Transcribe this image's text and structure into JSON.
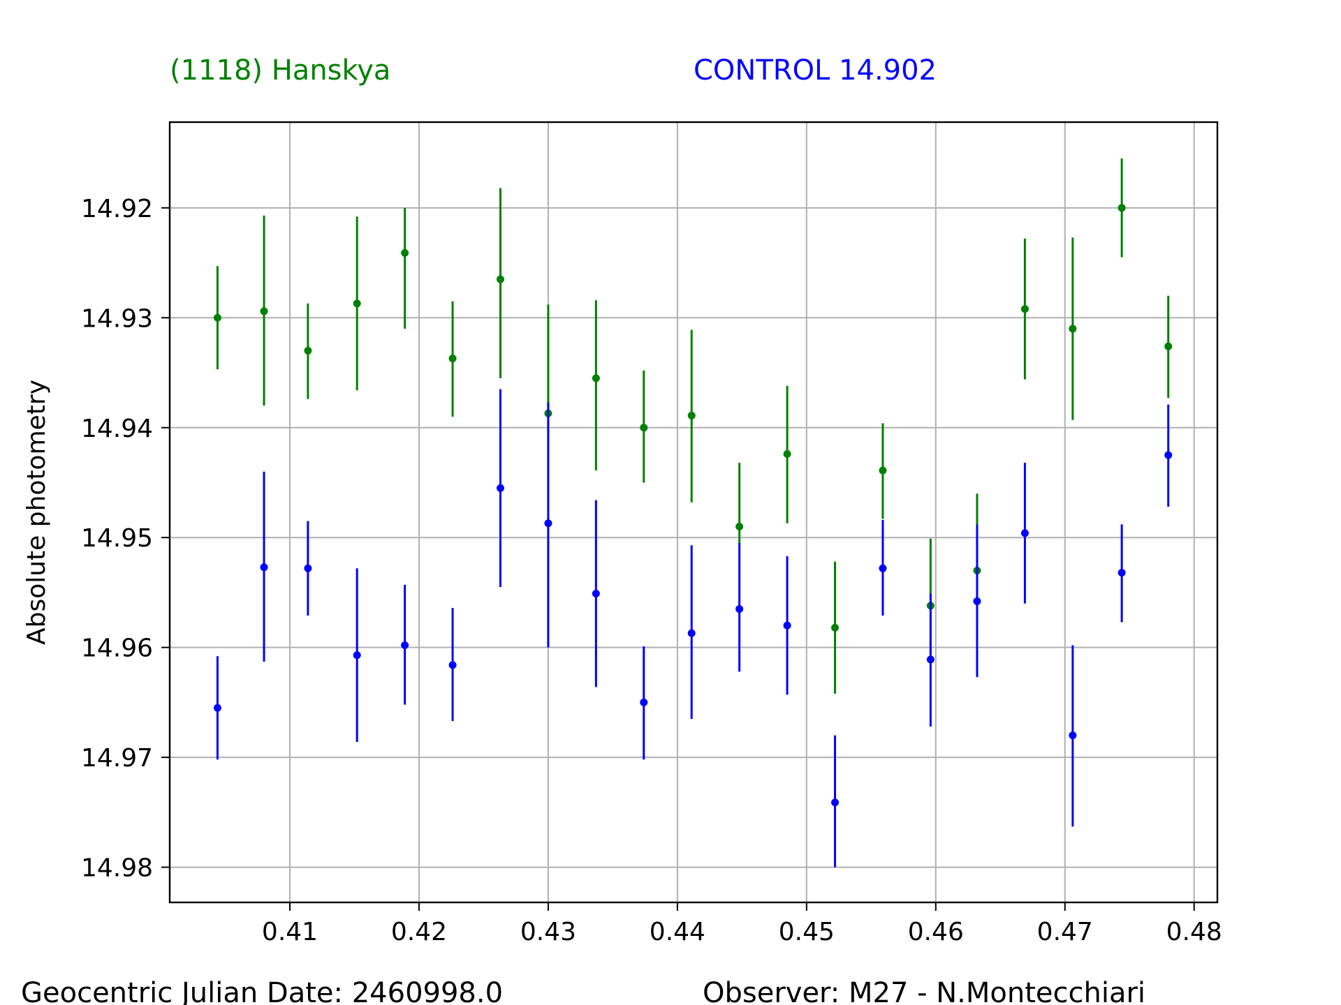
{
  "chart_data": {
    "type": "scatter",
    "header": {
      "target": "(1118) Hanskya",
      "control": "CONTROL 14.902"
    },
    "footer": {
      "date": "Geocentric Julian Date: 2460998.0",
      "observer": "Observer: M27 - N.Montecchiari"
    },
    "xlabel": "",
    "ylabel": "Absolute photometry",
    "xlim": [
      0.4007,
      0.4818
    ],
    "ylim": [
      14.9832,
      14.9122
    ],
    "y_inverted": true,
    "grid": true,
    "x_ticks": [
      0.41,
      0.42,
      0.43,
      0.44,
      0.45,
      0.46,
      0.47,
      0.48
    ],
    "x_tick_labels": [
      "0.41",
      "0.42",
      "0.43",
      "0.44",
      "0.45",
      "0.46",
      "0.47",
      "0.48"
    ],
    "y_ticks": [
      14.92,
      14.93,
      14.94,
      14.95,
      14.96,
      14.97,
      14.98
    ],
    "y_tick_labels": [
      "14.92",
      "14.93",
      "14.94",
      "14.95",
      "14.96",
      "14.97",
      "14.98"
    ],
    "series": [
      {
        "name": "(1118) Hanskya",
        "color": "#008000",
        "points": [
          {
            "x": 0.4044,
            "y": 14.93,
            "lo": 14.9253,
            "hi": 14.9347
          },
          {
            "x": 0.408,
            "y": 14.9294,
            "lo": 14.9207,
            "hi": 14.938
          },
          {
            "x": 0.4114,
            "y": 14.933,
            "lo": 14.9287,
            "hi": 14.9374
          },
          {
            "x": 0.4152,
            "y": 14.9287,
            "lo": 14.9208,
            "hi": 14.9366
          },
          {
            "x": 0.4189,
            "y": 14.9241,
            "lo": 14.92,
            "hi": 14.931
          },
          {
            "x": 0.4226,
            "y": 14.9337,
            "lo": 14.9285,
            "hi": 14.939
          },
          {
            "x": 0.4263,
            "y": 14.9265,
            "lo": 14.9182,
            "hi": 14.9355
          },
          {
            "x": 0.43,
            "y": 14.9387,
            "lo": 14.9288,
            "hi": 14.9405
          },
          {
            "x": 0.4337,
            "y": 14.9355,
            "lo": 14.9284,
            "hi": 14.9439
          },
          {
            "x": 0.4374,
            "y": 14.94,
            "lo": 14.9348,
            "hi": 14.945
          },
          {
            "x": 0.4411,
            "y": 14.9389,
            "lo": 14.9311,
            "hi": 14.9468
          },
          {
            "x": 0.4448,
            "y": 14.949,
            "lo": 14.9432,
            "hi": 14.9506
          },
          {
            "x": 0.4485,
            "y": 14.9424,
            "lo": 14.9362,
            "hi": 14.9487
          },
          {
            "x": 0.4522,
            "y": 14.9582,
            "lo": 14.9522,
            "hi": 14.9642
          },
          {
            "x": 0.4559,
            "y": 14.9439,
            "lo": 14.9396,
            "hi": 14.9483
          },
          {
            "x": 0.4596,
            "y": 14.9562,
            "lo": 14.9501,
            "hi": 14.9605
          },
          {
            "x": 0.4632,
            "y": 14.953,
            "lo": 14.946,
            "hi": 14.958
          },
          {
            "x": 0.4669,
            "y": 14.9292,
            "lo": 14.9228,
            "hi": 14.9356
          },
          {
            "x": 0.4706,
            "y": 14.931,
            "lo": 14.9227,
            "hi": 14.9393
          },
          {
            "x": 0.4744,
            "y": 14.92,
            "lo": 14.9155,
            "hi": 14.9245
          },
          {
            "x": 0.478,
            "y": 14.9326,
            "lo": 14.928,
            "hi": 14.9373
          }
        ]
      },
      {
        "name": "CONTROL 14.902",
        "color": "#0000ff",
        "points": [
          {
            "x": 0.4044,
            "y": 14.9655,
            "lo": 14.9608,
            "hi": 14.9702
          },
          {
            "x": 0.408,
            "y": 14.9527,
            "lo": 14.944,
            "hi": 14.9613
          },
          {
            "x": 0.4114,
            "y": 14.9528,
            "lo": 14.9485,
            "hi": 14.9571
          },
          {
            "x": 0.4152,
            "y": 14.9607,
            "lo": 14.9528,
            "hi": 14.9686
          },
          {
            "x": 0.4189,
            "y": 14.9598,
            "lo": 14.9543,
            "hi": 14.9652
          },
          {
            "x": 0.4226,
            "y": 14.9616,
            "lo": 14.9564,
            "hi": 14.9667
          },
          {
            "x": 0.4263,
            "y": 14.9455,
            "lo": 14.9365,
            "hi": 14.9545
          },
          {
            "x": 0.43,
            "y": 14.9487,
            "lo": 14.9377,
            "hi": 14.96
          },
          {
            "x": 0.4337,
            "y": 14.9551,
            "lo": 14.9466,
            "hi": 14.9636
          },
          {
            "x": 0.4374,
            "y": 14.965,
            "lo": 14.9599,
            "hi": 14.9702
          },
          {
            "x": 0.4411,
            "y": 14.9587,
            "lo": 14.9507,
            "hi": 14.9665
          },
          {
            "x": 0.4448,
            "y": 14.9565,
            "lo": 14.9505,
            "hi": 14.9622
          },
          {
            "x": 0.4485,
            "y": 14.958,
            "lo": 14.9517,
            "hi": 14.9643
          },
          {
            "x": 0.4522,
            "y": 14.9741,
            "lo": 14.968,
            "hi": 14.98
          },
          {
            "x": 0.4559,
            "y": 14.9528,
            "lo": 14.9484,
            "hi": 14.9571
          },
          {
            "x": 0.4596,
            "y": 14.9611,
            "lo": 14.9551,
            "hi": 14.9672
          },
          {
            "x": 0.4632,
            "y": 14.9558,
            "lo": 14.9488,
            "hi": 14.9627
          },
          {
            "x": 0.4669,
            "y": 14.9496,
            "lo": 14.9432,
            "hi": 14.956
          },
          {
            "x": 0.4706,
            "y": 14.968,
            "lo": 14.9598,
            "hi": 14.9763
          },
          {
            "x": 0.4744,
            "y": 14.9532,
            "lo": 14.9488,
            "hi": 14.9577
          },
          {
            "x": 0.478,
            "y": 14.9425,
            "lo": 14.9379,
            "hi": 14.9472
          }
        ]
      }
    ]
  }
}
